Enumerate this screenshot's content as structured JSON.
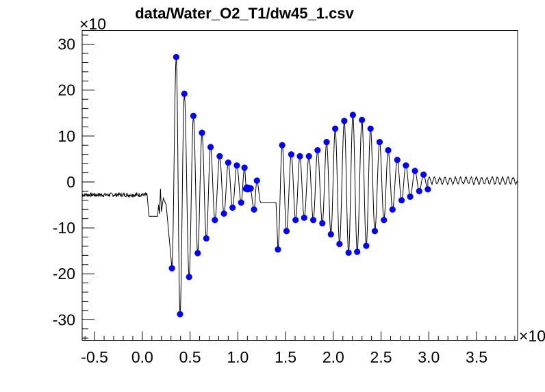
{
  "chart_data": {
    "type": "line",
    "title": "data/Water_O2_T1/dw45_1.csv",
    "xlabel": "",
    "ylabel": "",
    "x_exponent_label": "×10",
    "y_exponent_label": "×10",
    "xlim": [
      -0.63,
      3.93
    ],
    "ylim": [
      -34.5,
      33
    ],
    "x_ticks": [
      -0.5,
      0.0,
      0.5,
      1.0,
      1.5,
      2.0,
      2.5,
      3.0,
      3.5
    ],
    "x_tick_labels": [
      "-0.5",
      "0.0",
      "0.5",
      "1.0",
      "1.5",
      "2.0",
      "2.5",
      "3.0",
      "3.5"
    ],
    "y_ticks": [
      -30,
      -20,
      -10,
      0,
      10,
      20,
      30
    ],
    "y_tick_labels": [
      "-30",
      "-20",
      "-10",
      "0",
      "10",
      "20",
      "30"
    ],
    "grid": false,
    "colors": {
      "waveform": "#000000",
      "markers": "#0000ff"
    },
    "series": [
      {
        "kind": "waveform",
        "segments": [
          {
            "type": "noise",
            "x0": -0.63,
            "x1": 0.05,
            "mean": -2.8,
            "amp": 0.45
          },
          {
            "type": "step",
            "points": [
              [
                0.05,
                -2.8
              ],
              [
                0.07,
                -7.5
              ],
              [
                0.16,
                -7.5
              ],
              [
                0.17,
                -5
              ],
              [
                0.18,
                -7
              ],
              [
                0.19,
                -1.5
              ],
              [
                0.2,
                -6.5
              ],
              [
                0.22,
                -3.5
              ],
              [
                0.25,
                -5
              ]
            ]
          },
          {
            "type": "oscillation",
            "peaks": [
              [
                0.31,
                -18.8
              ],
              [
                0.355,
                27.2
              ],
              [
                0.395,
                -28.8
              ],
              [
                0.44,
                19.2
              ],
              [
                0.49,
                -20.7
              ],
              [
                0.535,
                14.4
              ],
              [
                0.58,
                -15.5
              ],
              [
                0.625,
                10.7
              ],
              [
                0.67,
                -12.3
              ],
              [
                0.715,
                7.6
              ],
              [
                0.76,
                -8.3
              ],
              [
                0.81,
                5.6
              ],
              [
                0.855,
                -6.9
              ],
              [
                0.9,
                4.2
              ],
              [
                0.945,
                -5.6
              ],
              [
                0.99,
                3.6
              ],
              [
                1.035,
                -4.5
              ],
              [
                1.07,
                3.1
              ],
              [
                1.09,
                -1.5
              ],
              [
                1.1,
                -1.2
              ],
              [
                1.11,
                -1.6
              ],
              [
                1.12,
                -1.3
              ],
              [
                1.13,
                -1.5
              ],
              [
                1.17,
                -6.0
              ],
              [
                1.2,
                0.3
              ],
              [
                1.24,
                -4.5
              ],
              [
                1.4,
                -4.5
              ]
            ]
          },
          {
            "type": "oscillation",
            "peaks": [
              [
                1.42,
                -14.7
              ],
              [
                1.465,
                8.0
              ],
              [
                1.51,
                -10.7
              ],
              [
                1.56,
                6.0
              ],
              [
                1.605,
                -8.3
              ],
              [
                1.65,
                5.6
              ],
              [
                1.695,
                -7.8
              ],
              [
                1.745,
                5.6
              ],
              [
                1.79,
                -8.3
              ],
              [
                1.835,
                6.9
              ],
              [
                1.885,
                -9.0
              ],
              [
                1.93,
                8.7
              ],
              [
                1.975,
                -11.4
              ],
              [
                2.02,
                11.6
              ],
              [
                2.065,
                -13.5
              ],
              [
                2.115,
                13.3
              ],
              [
                2.16,
                -15.4
              ],
              [
                2.205,
                14.6
              ],
              [
                2.25,
                -15.2
              ],
              [
                2.3,
                13.5
              ],
              [
                2.345,
                -13.9
              ],
              [
                2.39,
                11.6
              ],
              [
                2.435,
                -10.7
              ],
              [
                2.485,
                8.7
              ],
              [
                2.53,
                -8.3
              ],
              [
                2.575,
                6.9
              ],
              [
                2.62,
                -6.0
              ],
              [
                2.67,
                4.8
              ],
              [
                2.715,
                -4.0
              ],
              [
                2.76,
                3.6
              ],
              [
                2.805,
                -3.2
              ],
              [
                2.855,
                2.4
              ],
              [
                2.9,
                -2.0
              ],
              [
                2.945,
                1.6
              ],
              [
                2.99,
                -1.6
              ]
            ]
          },
          {
            "type": "ripple",
            "x0": 2.99,
            "x1": 3.93,
            "mean": 0.3,
            "amp": 0.7,
            "period": 0.055
          }
        ]
      },
      {
        "kind": "markers",
        "points": [
          [
            0.31,
            -18.8
          ],
          [
            0.355,
            27.2
          ],
          [
            0.395,
            -28.8
          ],
          [
            0.44,
            19.2
          ],
          [
            0.49,
            -20.7
          ],
          [
            0.535,
            14.4
          ],
          [
            0.58,
            -15.5
          ],
          [
            0.625,
            10.7
          ],
          [
            0.67,
            -12.3
          ],
          [
            0.715,
            7.6
          ],
          [
            0.76,
            -8.3
          ],
          [
            0.81,
            5.6
          ],
          [
            0.855,
            -6.9
          ],
          [
            0.9,
            4.2
          ],
          [
            0.945,
            -5.6
          ],
          [
            0.99,
            3.6
          ],
          [
            1.035,
            -4.5
          ],
          [
            1.07,
            3.1
          ],
          [
            1.085,
            -1.5
          ],
          [
            1.095,
            -1.2
          ],
          [
            1.105,
            -1.6
          ],
          [
            1.115,
            -1.3
          ],
          [
            1.125,
            -1.5
          ],
          [
            1.135,
            -1.4
          ],
          [
            1.17,
            -6.0
          ],
          [
            1.2,
            0.3
          ],
          [
            1.42,
            -14.7
          ],
          [
            1.465,
            8.0
          ],
          [
            1.51,
            -10.7
          ],
          [
            1.56,
            6.0
          ],
          [
            1.605,
            -8.3
          ],
          [
            1.65,
            5.6
          ],
          [
            1.695,
            -7.8
          ],
          [
            1.745,
            5.6
          ],
          [
            1.79,
            -8.3
          ],
          [
            1.835,
            6.9
          ],
          [
            1.885,
            -9.0
          ],
          [
            1.93,
            8.7
          ],
          [
            1.975,
            -11.4
          ],
          [
            2.02,
            11.6
          ],
          [
            2.065,
            -13.5
          ],
          [
            2.115,
            13.3
          ],
          [
            2.16,
            -15.4
          ],
          [
            2.205,
            14.6
          ],
          [
            2.25,
            -15.2
          ],
          [
            2.3,
            13.5
          ],
          [
            2.345,
            -13.9
          ],
          [
            2.39,
            11.6
          ],
          [
            2.435,
            -10.7
          ],
          [
            2.485,
            8.7
          ],
          [
            2.53,
            -8.3
          ],
          [
            2.575,
            6.9
          ],
          [
            2.62,
            -6.0
          ],
          [
            2.67,
            4.8
          ],
          [
            2.715,
            -4.0
          ],
          [
            2.76,
            3.6
          ],
          [
            2.805,
            -3.2
          ],
          [
            2.855,
            2.4
          ],
          [
            2.9,
            -2.0
          ],
          [
            2.945,
            1.6
          ],
          [
            2.99,
            -1.6
          ]
        ]
      }
    ]
  }
}
